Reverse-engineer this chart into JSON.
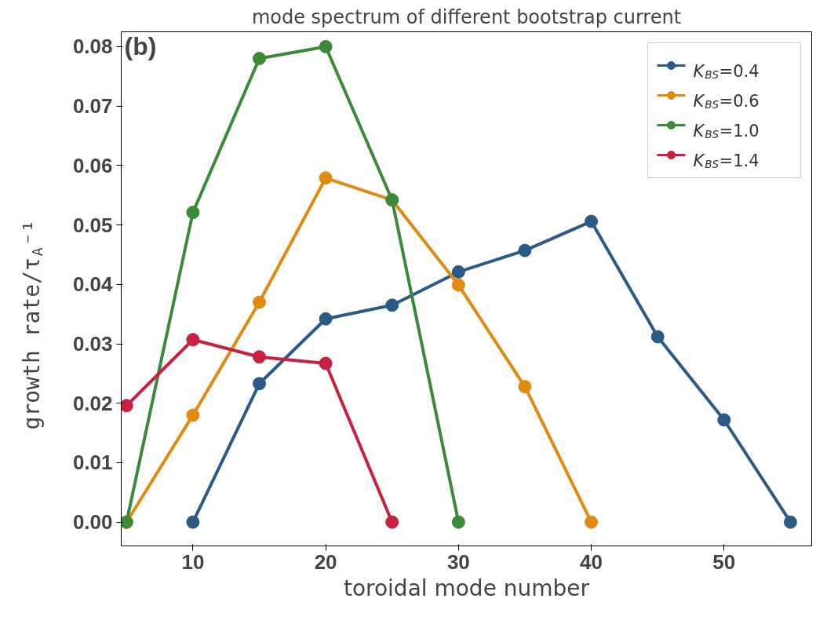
{
  "chart_data": {
    "type": "line",
    "title": "mode spectrum of different bootstrap current",
    "xlabel": "toroidal mode number",
    "ylabel": "growth rate/τ$_{A}$⁻¹",
    "annotations": [
      "(b)"
    ],
    "xlim": [
      4.6,
      56.6
    ],
    "xticks": [
      10,
      20,
      30,
      40,
      50
    ],
    "ylim": [
      -0.004,
      0.0825
    ],
    "yticks": [
      {
        "value": 0,
        "label": "0.00"
      },
      {
        "value": 0.01,
        "label": "0.01"
      },
      {
        "value": 0.02,
        "label": "0.02"
      },
      {
        "value": 0.03,
        "label": "0.03"
      },
      {
        "value": 0.04,
        "label": "0.04"
      },
      {
        "value": 0.05,
        "label": "0.05"
      },
      {
        "value": 0.06,
        "label": "0.06"
      },
      {
        "value": 0.07,
        "label": "0.07"
      },
      {
        "value": 0.08,
        "label": "0.08"
      }
    ],
    "grid": false,
    "legend": "top right",
    "marker": "circle",
    "line_style": "solid",
    "series": [
      {
        "name": "K$_{BS}$=0.4",
        "color": "#2b5a86",
        "x": [
          10,
          15,
          20,
          25,
          30,
          35,
          40,
          45,
          50,
          55
        ],
        "values": [
          0,
          0.0233,
          0.0342,
          0.0365,
          0.0421,
          0.0457,
          0.0506,
          0.0312,
          0.0172,
          0
        ]
      },
      {
        "name": "K$_{BS}$=0.6",
        "color": "#e08a10",
        "x": [
          5,
          10,
          15,
          20,
          25,
          30,
          35,
          40
        ],
        "values": [
          0,
          0.018,
          0.037,
          0.0579,
          0.0542,
          0.0399,
          0.0228,
          0
        ]
      },
      {
        "name": "K$_{BS}$=1.0",
        "color": "#3a8a3a",
        "x": [
          5,
          10,
          15,
          20,
          25,
          30
        ],
        "values": [
          0,
          0.0521,
          0.078,
          0.08,
          0.0542,
          0
        ]
      },
      {
        "name": "K$_{BS}$=1.4",
        "color": "#c8203f",
        "x": [
          5,
          10,
          15,
          20,
          25
        ],
        "values": [
          0.0196,
          0.0307,
          0.0278,
          0.0267,
          0
        ]
      }
    ]
  }
}
